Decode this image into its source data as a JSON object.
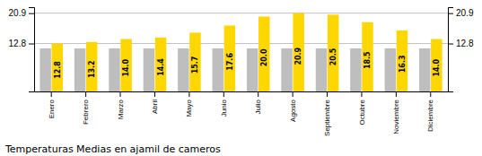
{
  "chart_data": {
    "type": "bar",
    "title": "Temperaturas Medias en ajamil de cameros",
    "categories": [
      "Enero",
      "Febrero",
      "Marzo",
      "Abril",
      "Mayo",
      "Junio",
      "Julio",
      "Agosto",
      "Septiembre",
      "Octubre",
      "Noviembre",
      "Diciembre"
    ],
    "series": [
      {
        "color": "#BEBEBE",
        "values": [
          11.5,
          11.5,
          11.5,
          11.5,
          11.5,
          11.5,
          11.5,
          11.5,
          11.5,
          11.5,
          11.5,
          11.5
        ]
      },
      {
        "color": "#FFD700",
        "values": [
          12.8,
          13.2,
          14.0,
          14.4,
          15.7,
          17.6,
          20.0,
          20.9,
          20.5,
          18.5,
          16.3,
          14.0
        ],
        "value_labels": [
          "12.8",
          "13.2",
          "14.0",
          "14.4",
          "15.7",
          "17.6",
          "20.0",
          "20.9",
          "20.5",
          "18.5",
          "16.3",
          "14.0"
        ],
        "data_labels": true
      }
    ],
    "ylim": [
      0,
      22.5
    ],
    "yticks": [
      12.8,
      20.9
    ],
    "y2lim": [
      0,
      22.5
    ],
    "y2ticks": [
      12.8,
      20.9
    ],
    "grid": true
  }
}
